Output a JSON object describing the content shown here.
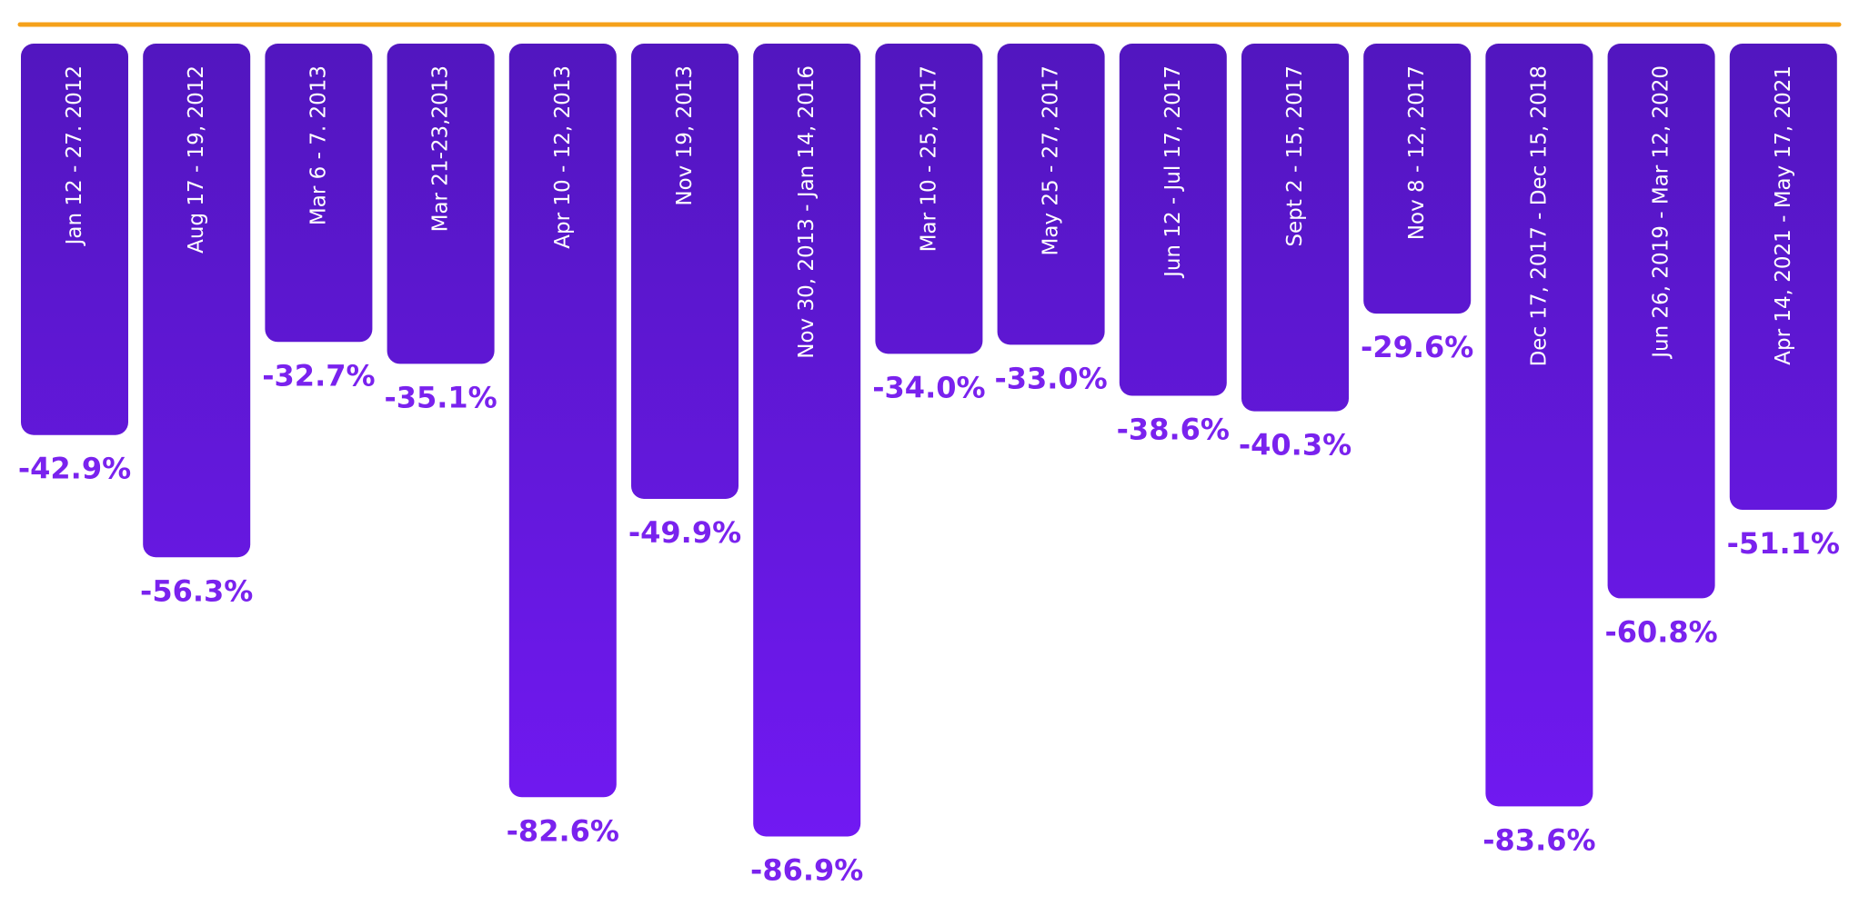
{
  "chart_data": {
    "type": "bar",
    "orientation": "vertical-downward",
    "title": "",
    "xlabel": "",
    "ylabel": "",
    "categories": [
      "Jan 12 - 27. 2012",
      "Aug 17 - 19, 2012",
      "Mar 6 - 7. 2013",
      "Mar 21-23,2013",
      "Apr 10 - 12, 2013",
      "Nov 19, 2013",
      "Nov 30, 2013 - Jan 14, 2016",
      "Mar 10 - 25, 2017",
      "May 25 - 27, 2017",
      "Jun 12 - Jul 17, 2017",
      "Sept 2 - 15, 2017",
      "Nov 8 - 12, 2017",
      "Dec 17, 2017 - Dec 15, 2018",
      "Jun 26, 2019 - Mar 12, 2020",
      "Apr 14, 2021 - May 17, 2021"
    ],
    "values": [
      -42.9,
      -56.3,
      -32.7,
      -35.1,
      -82.6,
      -49.9,
      -86.9,
      -34.0,
      -33.0,
      -38.6,
      -40.3,
      -29.6,
      -83.6,
      -60.8,
      -51.1
    ],
    "value_labels": [
      "-42.9%",
      "-56.3%",
      "-32.7%",
      "-35.1%",
      "-82.6%",
      "-49.9%",
      "-86.9%",
      "-34.0%",
      "-33.0%",
      "-38.6%",
      "-40.3%",
      "-29.6%",
      "-83.6%",
      "-60.8%",
      "-51.1%"
    ],
    "ylim": [
      -100,
      0
    ],
    "grid": false,
    "legend": "none",
    "colors": {
      "bar_top": "#5216bf",
      "bar_bottom": "#7119f2",
      "value_label": "#7a22ee",
      "category_label": "#ffffff",
      "baseline": "#f5a11a"
    }
  }
}
